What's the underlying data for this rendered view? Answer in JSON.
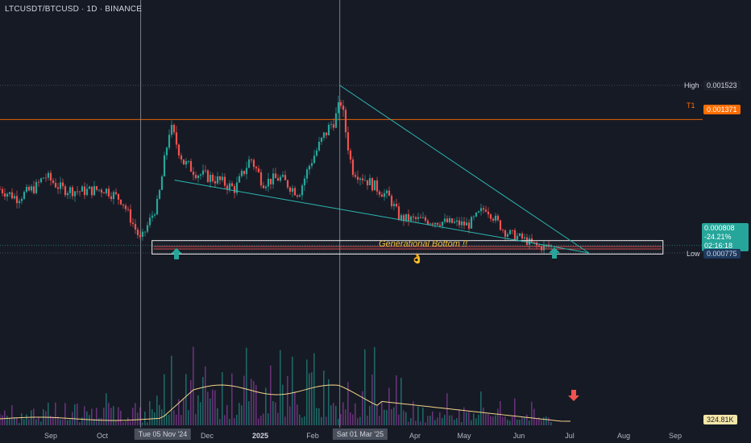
{
  "header": {
    "title": "LTCUSDT/BTCUSD · 1D · BINANCE"
  },
  "chart_data": {
    "type": "candlestick",
    "symbol": "LTCUSDT/BTCUSD",
    "interval": "1D",
    "exchange": "BINANCE",
    "x_ticks": [
      "Sep",
      "Oct",
      "Dec",
      "2025",
      "Feb",
      "Apr",
      "May",
      "Jun",
      "Jul",
      "Aug",
      "Sep"
    ],
    "ohlc_waypoints": [
      {
        "date": "2024-08-15",
        "close": 0.00106
      },
      {
        "date": "2024-08-25",
        "close": 0.00102
      },
      {
        "date": "2024-09-05",
        "close": 0.00107
      },
      {
        "date": "2024-09-10",
        "close": 0.00112
      },
      {
        "date": "2024-09-20",
        "close": 0.00106
      },
      {
        "date": "2024-10-01",
        "close": 0.00105
      },
      {
        "date": "2024-10-15",
        "close": 0.00106
      },
      {
        "date": "2024-10-25",
        "close": 0.00101
      },
      {
        "date": "2024-11-05",
        "close": 0.00083
      },
      {
        "date": "2024-11-15",
        "close": 0.001
      },
      {
        "date": "2024-11-22",
        "close": 0.00134
      },
      {
        "date": "2024-11-30",
        "close": 0.00118
      },
      {
        "date": "2024-12-08",
        "close": 0.00113
      },
      {
        "date": "2024-12-20",
        "close": 0.0011
      },
      {
        "date": "2024-12-30",
        "close": 0.00106
      },
      {
        "date": "2025-01-08",
        "close": 0.0012
      },
      {
        "date": "2025-01-15",
        "close": 0.00109
      },
      {
        "date": "2025-01-25",
        "close": 0.00111
      },
      {
        "date": "2025-02-05",
        "close": 0.00104
      },
      {
        "date": "2025-02-12",
        "close": 0.00118
      },
      {
        "date": "2025-02-20",
        "close": 0.0013
      },
      {
        "date": "2025-02-28",
        "close": 0.0014
      },
      {
        "date": "2025-03-01",
        "close": 0.00148
      },
      {
        "date": "2025-03-08",
        "close": 0.00115
      },
      {
        "date": "2025-03-20",
        "close": 0.00108
      },
      {
        "date": "2025-03-30",
        "close": 0.00102
      },
      {
        "date": "2025-04-05",
        "close": 0.00093
      },
      {
        "date": "2025-04-20",
        "close": 0.00092
      },
      {
        "date": "2025-05-05",
        "close": 0.00091
      },
      {
        "date": "2025-05-15",
        "close": 0.0009
      },
      {
        "date": "2025-05-25",
        "close": 0.00098
      },
      {
        "date": "2025-06-05",
        "close": 0.00087
      },
      {
        "date": "2025-06-15",
        "close": 0.00084
      },
      {
        "date": "2025-06-25",
        "close": 0.0008
      },
      {
        "date": "2025-07-03",
        "close": 0.000808
      }
    ],
    "price_levels": {
      "high": {
        "label": "High",
        "value": "0.001523",
        "price": 0.001523
      },
      "t1": {
        "label": "T1",
        "value": "0.001371",
        "price": 0.001371
      },
      "current": {
        "value": "0.000808",
        "change": "-24.21%",
        "countdown": "02:16:18",
        "price": 0.000808
      },
      "low": {
        "label": "Low",
        "value": "0.000775",
        "price": 0.000775
      }
    },
    "support_zone": {
      "top": 0.00083,
      "bottom": 0.00077,
      "from": "2024-11-05",
      "to": "2025-07-10"
    },
    "wedge": {
      "upper": [
        {
          "date": "2025-03-01",
          "price": 0.001523
        },
        {
          "date": "2025-07-10",
          "price": 0.000775
        }
      ],
      "lower": [
        {
          "date": "2024-11-20",
          "price": 0.0011
        },
        {
          "date": "2025-07-10",
          "price": 0.000775
        }
      ]
    },
    "annotations": {
      "zone_label": "Generational Bottom !!",
      "emoji": "👌"
    },
    "markers": [
      {
        "type": "arrow-up",
        "date": "2024-11-05",
        "color": "#26a69a"
      },
      {
        "type": "arrow-up",
        "date": "2025-06-28",
        "color": "#26a69a"
      },
      {
        "type": "arrow-down",
        "date": "2025-07-03",
        "color": "#ef5350",
        "pane": "volume"
      }
    ],
    "crosshair_dates": [
      "Tue 05 Nov '24",
      "Sat 01 Mar '25"
    ],
    "volume": {
      "last": "324.81K"
    },
    "colors": {
      "up": "#26a69a",
      "down": "#ef5350",
      "t1": "#ff6d00",
      "wedge": "#2bb7b0",
      "volume_ma": "#f5d48a",
      "zone": "#f0f0f0"
    }
  }
}
